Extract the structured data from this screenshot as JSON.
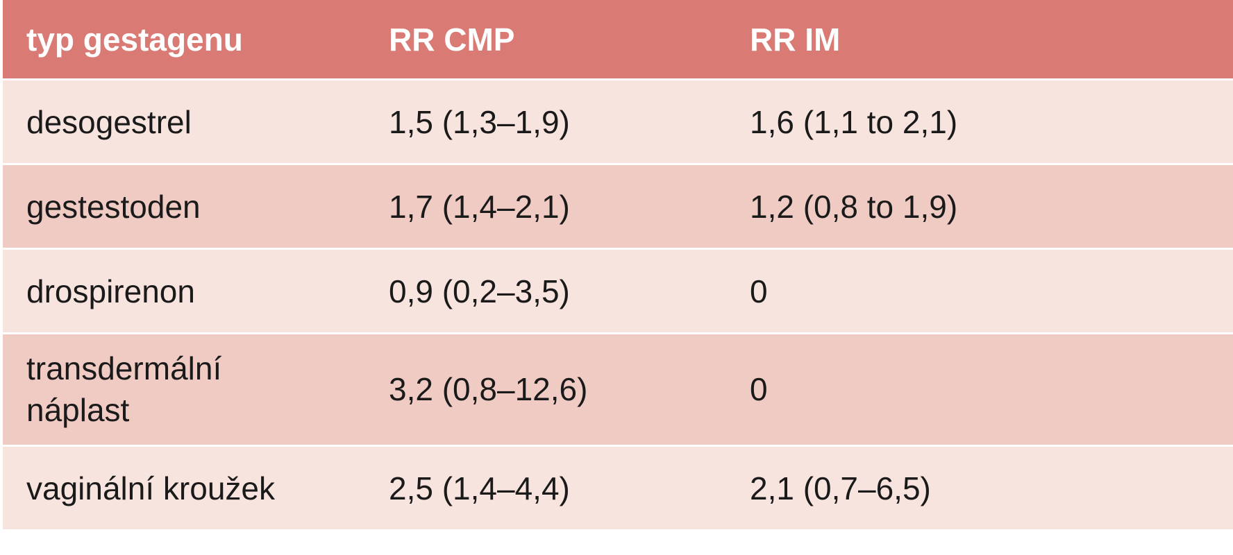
{
  "table": {
    "headers": [
      "typ gestagenu",
      "RR CMP",
      "RR IM"
    ],
    "rows": [
      {
        "type": "desogestrel",
        "rr_cmp": "1,5 (1,3–1,9)",
        "rr_im": "1,6 (1,1 to 2,1)"
      },
      {
        "type": "gestestoden",
        "rr_cmp": "1,7 (1,4–2,1)",
        "rr_im": "1,2 (0,8 to 1,9)"
      },
      {
        "type": "drospirenon",
        "rr_cmp": "0,9 (0,2–3,5)",
        "rr_im": "0"
      },
      {
        "type_line1": "transdermální",
        "type_line2": "náplast",
        "rr_cmp": "3,2 (0,8–12,6)",
        "rr_im": "0"
      },
      {
        "type": "vaginální kroužek",
        "rr_cmp": "2,5 (1,4–4,4)",
        "rr_im": "2,1 (0,7–6,5)"
      }
    ]
  },
  "colors": {
    "header_bg": "#d97a74",
    "row_light": "#f8e4df",
    "row_dark": "#f0cbc3"
  }
}
